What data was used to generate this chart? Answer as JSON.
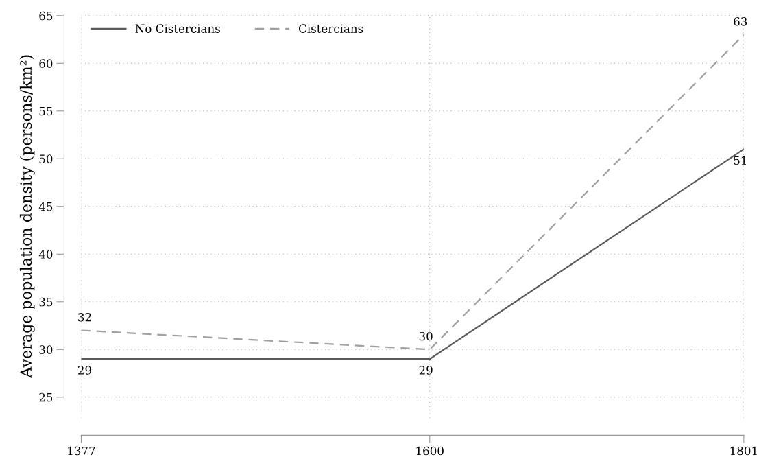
{
  "chart_data": {
    "type": "line",
    "ylabel": "Average population density (persons/km²)",
    "x": [
      1377,
      1600,
      1801
    ],
    "series": [
      {
        "name": "No Cistercians",
        "color": "#5a5a5a",
        "values": [
          29,
          29,
          51
        ],
        "line_style": "solid"
      },
      {
        "name": "Cistercians",
        "color": "#a0a0a0",
        "values": [
          32,
          30,
          63
        ],
        "line_style": "dashed"
      }
    ],
    "xlim": [
      1377,
      1801
    ],
    "xticks": [
      1377,
      1600,
      1801
    ],
    "ylim": [
      22.8,
      65.2
    ],
    "yticks": [
      25,
      30,
      35,
      40,
      45,
      50,
      55,
      60,
      65
    ],
    "grid": true,
    "legend": "top left",
    "data_labels": true,
    "marker": "none"
  }
}
